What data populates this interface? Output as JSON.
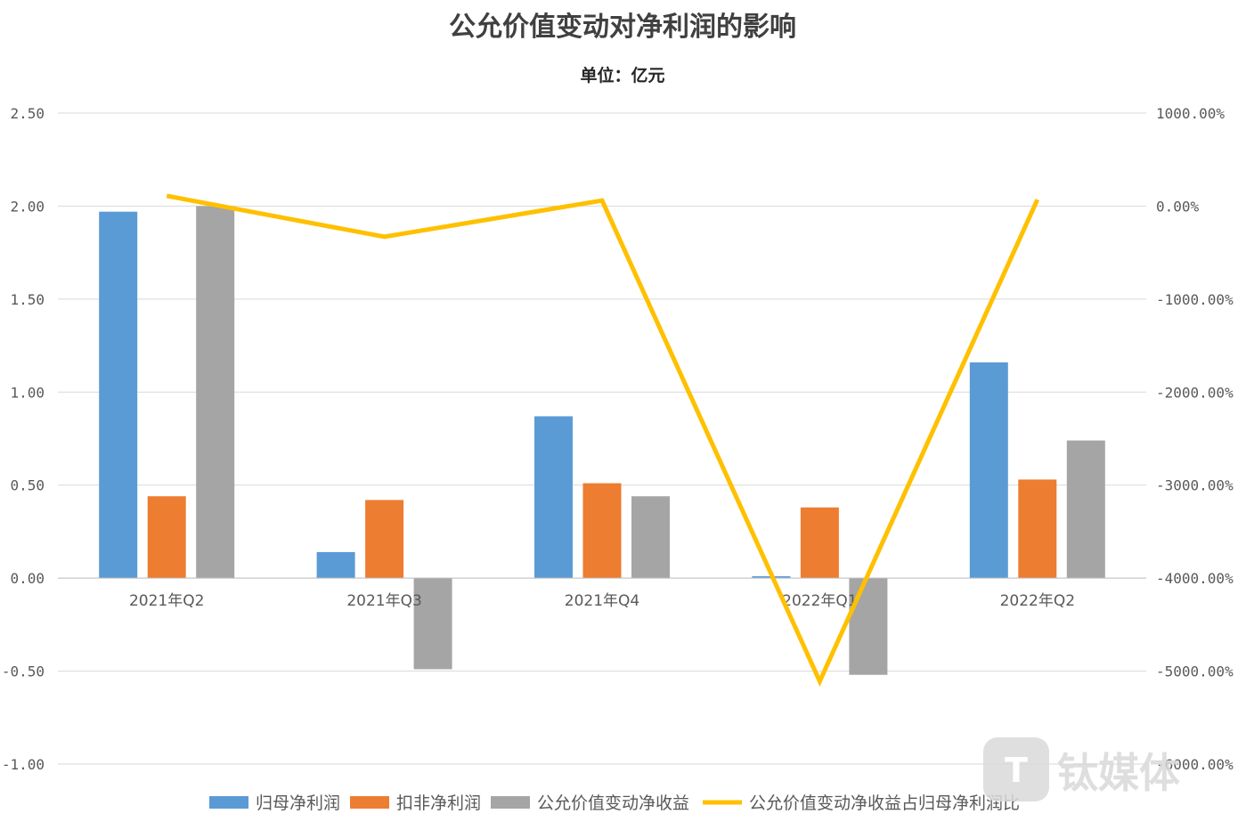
{
  "chart_data": {
    "type": "bar",
    "title": "公允价值变动对净利润的影响",
    "subtitle": "单位：亿元",
    "categories": [
      "2021年Q2",
      "2021年Q3",
      "2021年Q4",
      "2022年Q1",
      "2022年Q2"
    ],
    "series": [
      {
        "name": "归母净利润",
        "type": "bar",
        "axis": "left",
        "color": "#5b9bd5",
        "values": [
          1.97,
          0.14,
          0.87,
          0.01,
          1.16
        ]
      },
      {
        "name": "扣非净利润",
        "type": "bar",
        "axis": "left",
        "color": "#ed7d31",
        "values": [
          0.44,
          0.42,
          0.51,
          0.38,
          0.53
        ]
      },
      {
        "name": "公允价值变动净收益",
        "type": "bar",
        "axis": "left",
        "color": "#a5a5a5",
        "values": [
          2.0,
          -0.49,
          0.44,
          -0.52,
          0.74
        ]
      },
      {
        "name": "公允价值变动净收益占归母净利润比",
        "type": "line",
        "axis": "right",
        "color": "#ffc000",
        "values": [
          1.1,
          -3.3,
          0.6,
          -51.1,
          0.7
        ]
      }
    ],
    "ylim_left": [
      -1.0,
      2.5
    ],
    "yticks_left": [
      "2.50",
      "2.00",
      "1.50",
      "1.00",
      "0.50",
      "0.00",
      "-0.50",
      "-1.00"
    ],
    "ylim_right": [
      -60.0,
      10.0
    ],
    "yticks_right": [
      "1000.00%",
      "0.00%",
      "-1000.00%",
      "-2000.00%",
      "-3000.00%",
      "-4000.00%",
      "-5000.00%",
      "-6000.00%"
    ],
    "grid": true,
    "legend_position": "bottom",
    "watermark": "钛媒体"
  }
}
